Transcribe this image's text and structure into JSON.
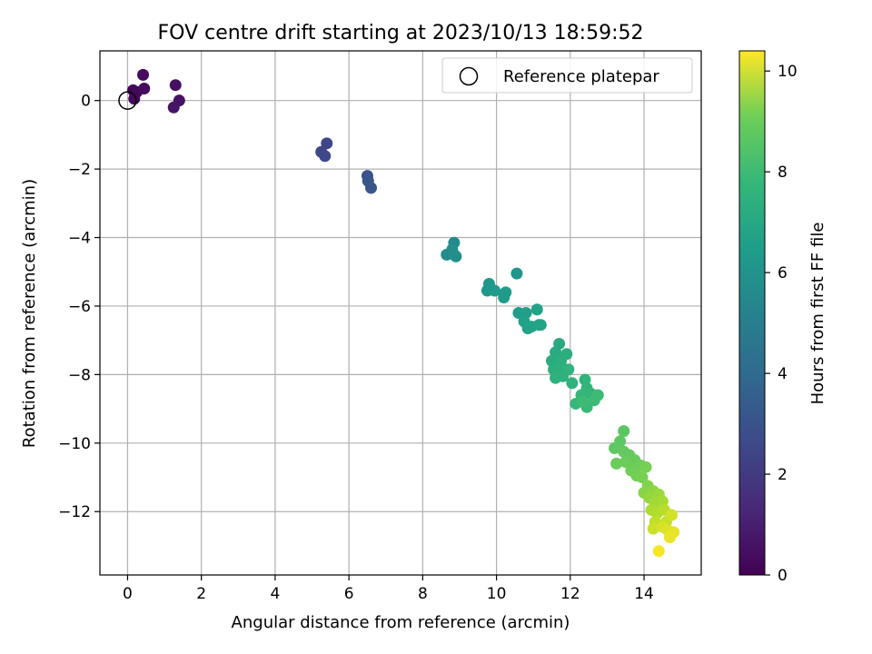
{
  "chart_data": {
    "type": "scatter",
    "title": "FOV centre drift starting at 2023/10/13 18:59:52",
    "xlabel": "Angular distance from reference (arcmin)",
    "ylabel": "Rotation from reference (arcmin)",
    "xlim": [
      -0.75,
      15.55
    ],
    "ylim": [
      -13.85,
      1.45
    ],
    "xticks": [
      0,
      2,
      4,
      6,
      8,
      10,
      12,
      14
    ],
    "yticks": [
      0,
      -2,
      -4,
      -6,
      -8,
      -10,
      -12
    ],
    "xtick_labels": [
      "0",
      "2",
      "4",
      "6",
      "8",
      "10",
      "12",
      "14"
    ],
    "ytick_labels": [
      "0",
      "−2",
      "−4",
      "−6",
      "−8",
      "−10",
      "−12"
    ],
    "grid": true,
    "legend": {
      "position": "top-right",
      "entries": [
        "Reference platepar"
      ]
    },
    "reference_point": {
      "name": "Reference platepar",
      "x": 0,
      "y": 0
    },
    "colorbar": {
      "label": "Hours from first FF file",
      "range": [
        0,
        10.4
      ],
      "ticks": [
        0,
        2,
        4,
        6,
        8,
        10
      ],
      "tick_labels": [
        "0",
        "2",
        "4",
        "6",
        "8",
        "10"
      ],
      "colormap": "viridis"
    },
    "points": [
      [
        0.15,
        0.3,
        0.1
      ],
      [
        0.2,
        0.2,
        0.15
      ],
      [
        0.18,
        0.05,
        0.2
      ],
      [
        0.25,
        0.25,
        0.25
      ],
      [
        0.45,
        0.35,
        0.3
      ],
      [
        0.42,
        0.75,
        0.35
      ],
      [
        1.3,
        0.45,
        0.45
      ],
      [
        1.4,
        0.0,
        0.5
      ],
      [
        1.25,
        -0.2,
        0.55
      ],
      [
        5.4,
        -1.25,
        2.2
      ],
      [
        5.25,
        -1.5,
        2.25
      ],
      [
        5.35,
        -1.62,
        2.3
      ],
      [
        6.5,
        -2.2,
        2.7
      ],
      [
        6.52,
        -2.35,
        2.75
      ],
      [
        6.6,
        -2.55,
        2.8
      ],
      [
        8.85,
        -4.15,
        5.0
      ],
      [
        8.65,
        -4.5,
        5.05
      ],
      [
        8.9,
        -4.55,
        5.1
      ],
      [
        8.8,
        -4.35,
        5.1
      ],
      [
        8.85,
        -4.5,
        5.15
      ],
      [
        10.55,
        -5.05,
        5.4
      ],
      [
        9.8,
        -5.35,
        5.5
      ],
      [
        9.75,
        -5.55,
        5.55
      ],
      [
        9.95,
        -5.55,
        5.6
      ],
      [
        10.25,
        -5.6,
        5.65
      ],
      [
        10.2,
        -5.75,
        5.7
      ],
      [
        10.6,
        -6.2,
        5.8
      ],
      [
        10.8,
        -6.2,
        5.85
      ],
      [
        10.75,
        -6.45,
        5.9
      ],
      [
        10.85,
        -6.65,
        5.9
      ],
      [
        10.95,
        -6.6,
        5.95
      ],
      [
        11.1,
        -6.1,
        6.0
      ],
      [
        11.15,
        -6.55,
        6.0
      ],
      [
        11.2,
        -6.55,
        6.05
      ],
      [
        11.7,
        -7.1,
        6.3
      ],
      [
        11.6,
        -7.35,
        6.35
      ],
      [
        11.5,
        -7.6,
        6.4
      ],
      [
        11.9,
        -7.4,
        6.45
      ],
      [
        11.55,
        -7.85,
        6.5
      ],
      [
        11.75,
        -7.6,
        6.5
      ],
      [
        11.7,
        -7.9,
        6.55
      ],
      [
        11.6,
        -8.1,
        6.6
      ],
      [
        11.8,
        -8.05,
        6.6
      ],
      [
        11.95,
        -7.85,
        6.65
      ],
      [
        12.05,
        -8.25,
        6.7
      ],
      [
        12.4,
        -8.15,
        6.75
      ],
      [
        12.45,
        -8.4,
        6.8
      ],
      [
        12.55,
        -8.55,
        6.85
      ],
      [
        12.3,
        -8.6,
        6.9
      ],
      [
        12.15,
        -8.85,
        6.95
      ],
      [
        12.45,
        -8.95,
        7.0
      ],
      [
        12.65,
        -8.75,
        7.05
      ],
      [
        12.75,
        -8.6,
        7.1
      ],
      [
        12.35,
        -8.8,
        7.1
      ],
      [
        13.45,
        -9.65,
        7.7
      ],
      [
        13.35,
        -9.95,
        7.75
      ],
      [
        13.2,
        -10.15,
        7.8
      ],
      [
        13.45,
        -10.25,
        7.85
      ],
      [
        13.6,
        -10.35,
        7.9
      ],
      [
        13.75,
        -10.5,
        7.95
      ],
      [
        13.25,
        -10.6,
        8.0
      ],
      [
        13.5,
        -10.55,
        8.0
      ],
      [
        13.9,
        -10.65,
        8.05
      ],
      [
        13.65,
        -10.8,
        8.1
      ],
      [
        13.8,
        -10.95,
        8.15
      ],
      [
        14.05,
        -10.7,
        8.2
      ],
      [
        13.95,
        -11.0,
        8.25
      ],
      [
        14.1,
        -11.25,
        8.4
      ],
      [
        14.0,
        -11.45,
        8.5
      ],
      [
        14.25,
        -11.4,
        8.6
      ],
      [
        14.15,
        -11.6,
        8.7
      ],
      [
        14.4,
        -11.5,
        8.8
      ],
      [
        14.3,
        -11.75,
        8.9
      ],
      [
        14.5,
        -11.7,
        9.0
      ],
      [
        14.2,
        -11.95,
        9.1
      ],
      [
        14.35,
        -12.05,
        9.2
      ],
      [
        14.55,
        -11.95,
        9.3
      ],
      [
        14.3,
        -12.3,
        9.4
      ],
      [
        14.6,
        -12.3,
        9.5
      ],
      [
        14.25,
        -12.5,
        9.6
      ],
      [
        14.75,
        -12.1,
        9.7
      ],
      [
        14.5,
        -12.45,
        9.8
      ],
      [
        14.65,
        -12.55,
        9.9
      ],
      [
        14.8,
        -12.6,
        10.0
      ],
      [
        14.7,
        -12.75,
        10.1
      ],
      [
        14.4,
        -13.15,
        10.3
      ]
    ]
  }
}
